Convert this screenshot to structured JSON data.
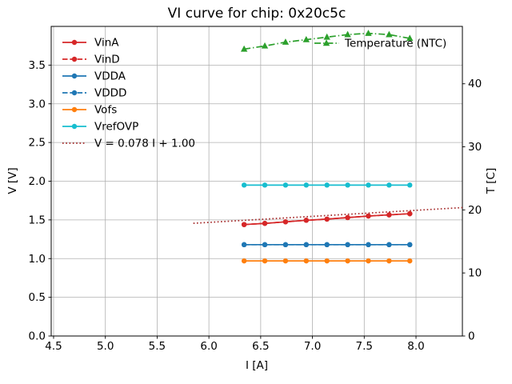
{
  "chart_data": {
    "type": "line",
    "title": "VI curve for chip: 0x20c5c",
    "xlabel": "I [A]",
    "ylabel_left": "V [V]",
    "ylabel_right": "T [C]",
    "xlim": [
      4.477,
      8.448
    ],
    "ylim_left": [
      0,
      4.0
    ],
    "ylim_right": [
      0,
      49.1
    ],
    "xtick_values": [
      4.5,
      5.0,
      5.5,
      6.0,
      6.5,
      7.0,
      7.5,
      8.0
    ],
    "xtick_labels": [
      "4.5",
      "5.0",
      "5.5",
      "6.0",
      "6.5",
      "7.0",
      "7.5",
      "8.0"
    ],
    "ytick_left_values": [
      0.0,
      0.5,
      1.0,
      1.5,
      2.0,
      2.5,
      3.0,
      3.5
    ],
    "ytick_left_labels": [
      "0.0",
      "0.5",
      "1.0",
      "1.5",
      "2.0",
      "2.5",
      "3.0",
      "3.5"
    ],
    "ytick_right_values": [
      0,
      10,
      20,
      30,
      40
    ],
    "ytick_right_labels": [
      "0",
      "10",
      "20",
      "30",
      "40"
    ],
    "grid": true,
    "grid_color": "#b0b0b0",
    "x": [
      6.34,
      6.54,
      6.74,
      6.94,
      7.14,
      7.34,
      7.54,
      7.74,
      7.94
    ],
    "series": [
      {
        "name": "VinA",
        "axis": "left",
        "color": "#d62728",
        "style": "solid",
        "marker": "circle",
        "values": [
          1.44,
          1.455,
          1.475,
          1.495,
          1.51,
          1.53,
          1.55,
          1.565,
          1.58
        ]
      },
      {
        "name": "VinD",
        "axis": "left",
        "color": "#d62728",
        "style": "dashed",
        "marker": "circle",
        "values": [
          1.44,
          1.455,
          1.475,
          1.495,
          1.51,
          1.53,
          1.55,
          1.565,
          1.58
        ]
      },
      {
        "name": "VDDA",
        "axis": "left",
        "color": "#1f77b4",
        "style": "solid",
        "marker": "circle",
        "values": [
          1.18,
          1.18,
          1.18,
          1.18,
          1.18,
          1.18,
          1.18,
          1.18,
          1.18
        ]
      },
      {
        "name": "VDDD",
        "axis": "left",
        "color": "#1f77b4",
        "style": "dashed",
        "marker": "circle",
        "values": [
          1.18,
          1.18,
          1.18,
          1.18,
          1.18,
          1.18,
          1.18,
          1.18,
          1.18
        ]
      },
      {
        "name": "Vofs",
        "axis": "left",
        "color": "#ff7f0e",
        "style": "solid",
        "marker": "circle",
        "values": [
          0.97,
          0.97,
          0.97,
          0.97,
          0.97,
          0.97,
          0.97,
          0.97,
          0.97
        ]
      },
      {
        "name": "VrefOVP",
        "axis": "left",
        "color": "#17becf",
        "style": "solid",
        "marker": "circle",
        "values": [
          1.95,
          1.95,
          1.95,
          1.95,
          1.95,
          1.95,
          1.95,
          1.95,
          1.95
        ]
      },
      {
        "name": "V = 0.078 I + 1.00",
        "axis": "left",
        "color": "#a52a2a",
        "style": "dotted",
        "marker": "none",
        "fit": {
          "slope": 0.078,
          "intercept": 1.0,
          "x_start": 5.85,
          "x_end": 8.448
        }
      },
      {
        "name": "Temperature (NTC)",
        "axis": "right",
        "color": "#2ca02c",
        "style": "dashdot",
        "marker": "triangle",
        "values": [
          45.5,
          46.0,
          46.6,
          47.0,
          47.4,
          47.8,
          48.0,
          47.8,
          47.2
        ]
      }
    ],
    "legend": {
      "position": "upper-left",
      "entries": [
        "VinA",
        "VinD",
        "VDDA",
        "VDDD",
        "Vofs",
        "VrefOVP",
        "V = 0.078 I + 1.00"
      ]
    },
    "legend2": {
      "position": "upper-right-inside",
      "entries": [
        "Temperature (NTC)"
      ]
    }
  }
}
